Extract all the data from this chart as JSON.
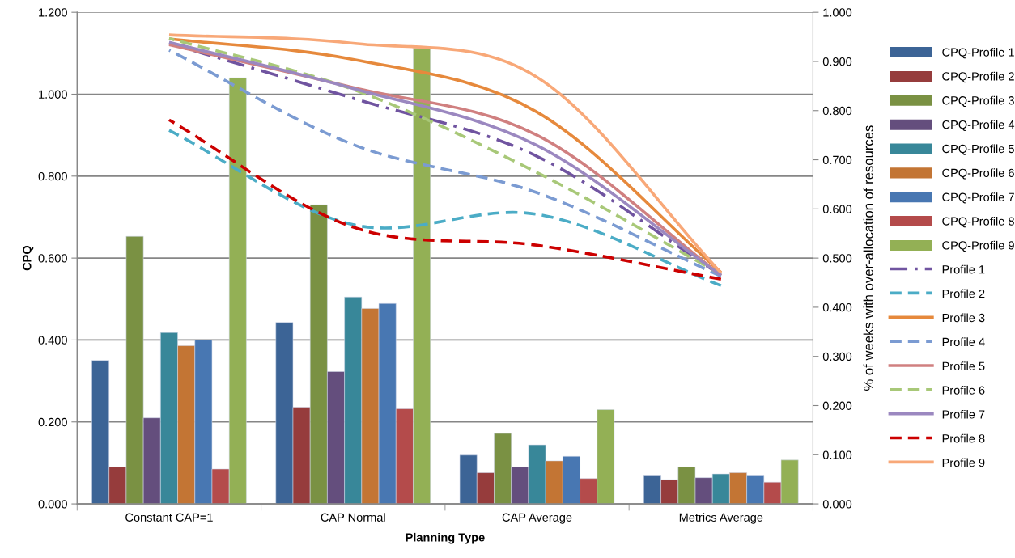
{
  "chart_data": {
    "type": "bar",
    "xlabel": "Planning Type",
    "ylabel": "CPQ",
    "y2label": "% of weeks with over-allocation of resources",
    "categories": [
      "Constant CAP=1",
      "CAP Normal",
      "CAP Average",
      "Metrics Average"
    ],
    "ylim": [
      0,
      1.2
    ],
    "yticks": [
      {
        "value": 0,
        "label": "0.000"
      },
      {
        "value": 0.2,
        "label": "0.200"
      },
      {
        "value": 0.4,
        "label": "0.400"
      },
      {
        "value": 0.6,
        "label": "0.600"
      },
      {
        "value": 0.8,
        "label": "0.800"
      },
      {
        "value": 1.0,
        "label": "1.000"
      },
      {
        "value": 1.2,
        "label": "1.200"
      }
    ],
    "y2lim": [
      0,
      1.0
    ],
    "y2ticks": [
      {
        "value": 0,
        "label": "0.000"
      },
      {
        "value": 0.1,
        "label": "0.100"
      },
      {
        "value": 0.2,
        "label": "0.200"
      },
      {
        "value": 0.3,
        "label": "0.300"
      },
      {
        "value": 0.4,
        "label": "0.400"
      },
      {
        "value": 0.5,
        "label": "0.500"
      },
      {
        "value": 0.6,
        "label": "0.600"
      },
      {
        "value": 0.7,
        "label": "0.700"
      },
      {
        "value": 0.8,
        "label": "0.800"
      },
      {
        "value": 0.9,
        "label": "0.900"
      },
      {
        "value": 1.0,
        "label": "1.000"
      }
    ],
    "grid": "y",
    "legend": "right",
    "series": [
      {
        "name": "CPQ-Profile 1",
        "color": "#3c6496",
        "values": [
          0.35,
          0.443,
          0.119,
          0.07
        ]
      },
      {
        "name": "CPQ-Profile 2",
        "color": "#963c3c",
        "values": [
          0.09,
          0.236,
          0.076,
          0.059
        ]
      },
      {
        "name": "CPQ-Profile 3",
        "color": "#7a9143",
        "values": [
          0.653,
          0.73,
          0.172,
          0.09
        ]
      },
      {
        "name": "CPQ-Profile 4",
        "color": "#644e7d",
        "values": [
          0.21,
          0.323,
          0.09,
          0.064
        ]
      },
      {
        "name": "CPQ-Profile 5",
        "color": "#388799",
        "values": [
          0.418,
          0.505,
          0.144,
          0.073
        ]
      },
      {
        "name": "CPQ-Profile 6",
        "color": "#c37534",
        "values": [
          0.386,
          0.477,
          0.105,
          0.076
        ]
      },
      {
        "name": "CPQ-Profile 7",
        "color": "#4877b2",
        "values": [
          0.4,
          0.489,
          0.116,
          0.07
        ]
      },
      {
        "name": "CPQ-Profile 8",
        "color": "#b44b4b",
        "values": [
          0.085,
          0.232,
          0.062,
          0.053
        ]
      },
      {
        "name": "CPQ-Profile 9",
        "color": "#93b055",
        "values": [
          1.04,
          1.113,
          0.23,
          0.107
        ]
      },
      {
        "name": "Profile 1",
        "type": "line",
        "axis": "y2",
        "line_style": "dashdot",
        "color": "#7054a0",
        "values": [
          0.937,
          0.825,
          0.707,
          0.465
        ]
      },
      {
        "name": "Profile 2",
        "type": "line",
        "axis": "y2",
        "line_style": "dashed",
        "color": "#4bacc6",
        "values": [
          0.76,
          0.568,
          0.589,
          0.444
        ]
      },
      {
        "name": "Profile 3",
        "type": "line",
        "axis": "y2",
        "line_style": "solid",
        "color": "#e6893c",
        "values": [
          0.946,
          0.904,
          0.797,
          0.471
        ]
      },
      {
        "name": "Profile 4",
        "type": "line",
        "axis": "y2",
        "line_style": "dashed",
        "color": "#7b9bd2",
        "values": [
          0.923,
          0.731,
          0.633,
          0.463
        ]
      },
      {
        "name": "Profile 5",
        "type": "line",
        "axis": "y2",
        "line_style": "solid",
        "color": "#d08080",
        "values": [
          0.934,
          0.847,
          0.75,
          0.465
        ]
      },
      {
        "name": "Profile 6",
        "type": "line",
        "axis": "y2",
        "line_style": "dashed",
        "color": "#a8c878",
        "values": [
          0.947,
          0.843,
          0.674,
          0.467
        ]
      },
      {
        "name": "Profile 7",
        "type": "line",
        "axis": "y2",
        "line_style": "solid",
        "color": "#9b88c0",
        "values": [
          0.939,
          0.845,
          0.729,
          0.465
        ]
      },
      {
        "name": "Profile 8",
        "type": "line",
        "axis": "y2",
        "line_style": "dashed",
        "color": "#cc0000",
        "values": [
          0.781,
          0.563,
          0.526,
          0.457
        ]
      },
      {
        "name": "Profile 9",
        "type": "line",
        "axis": "y2",
        "line_style": "solid",
        "color": "#f8a878",
        "values": [
          0.954,
          0.937,
          0.868,
          0.47
        ]
      }
    ]
  }
}
